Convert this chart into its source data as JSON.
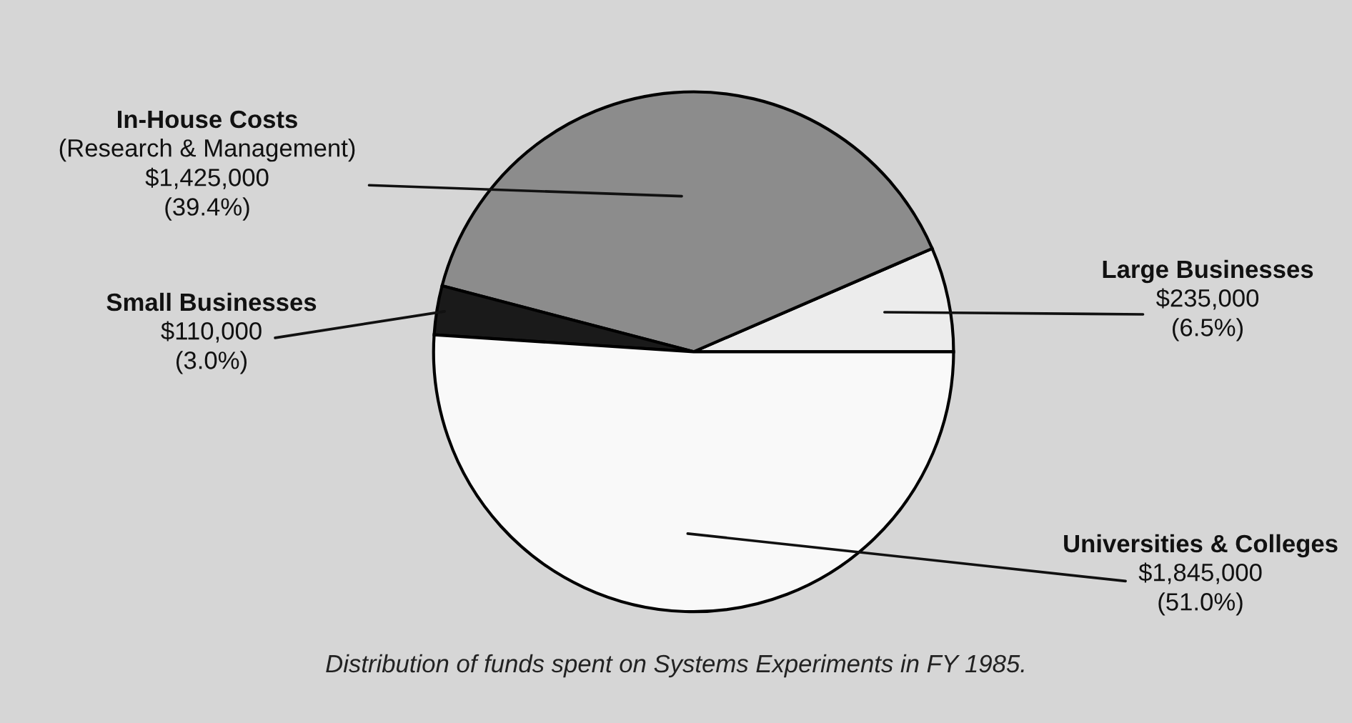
{
  "chart_data": {
    "type": "pie",
    "categories": [
      "Large Businesses",
      "In-House Costs",
      "Small Businesses",
      "Universities & Colleges"
    ],
    "values": [
      235000,
      1425000,
      110000,
      1845000
    ],
    "colors": [
      "#ececec",
      "#8c8c8c",
      "#1a1a1a",
      "#f9f9f9"
    ],
    "value_labels": [
      "$235,000\n(6.5%)",
      "(Research & Management)\n$1,425,000\n(39.4%)",
      "$110,000\n(3.0%)",
      "$1,845,000\n(51.0%)"
    ],
    "annotations": [
      "Distribution of funds spent on Systems Experiments in FY 1985."
    ]
  }
}
